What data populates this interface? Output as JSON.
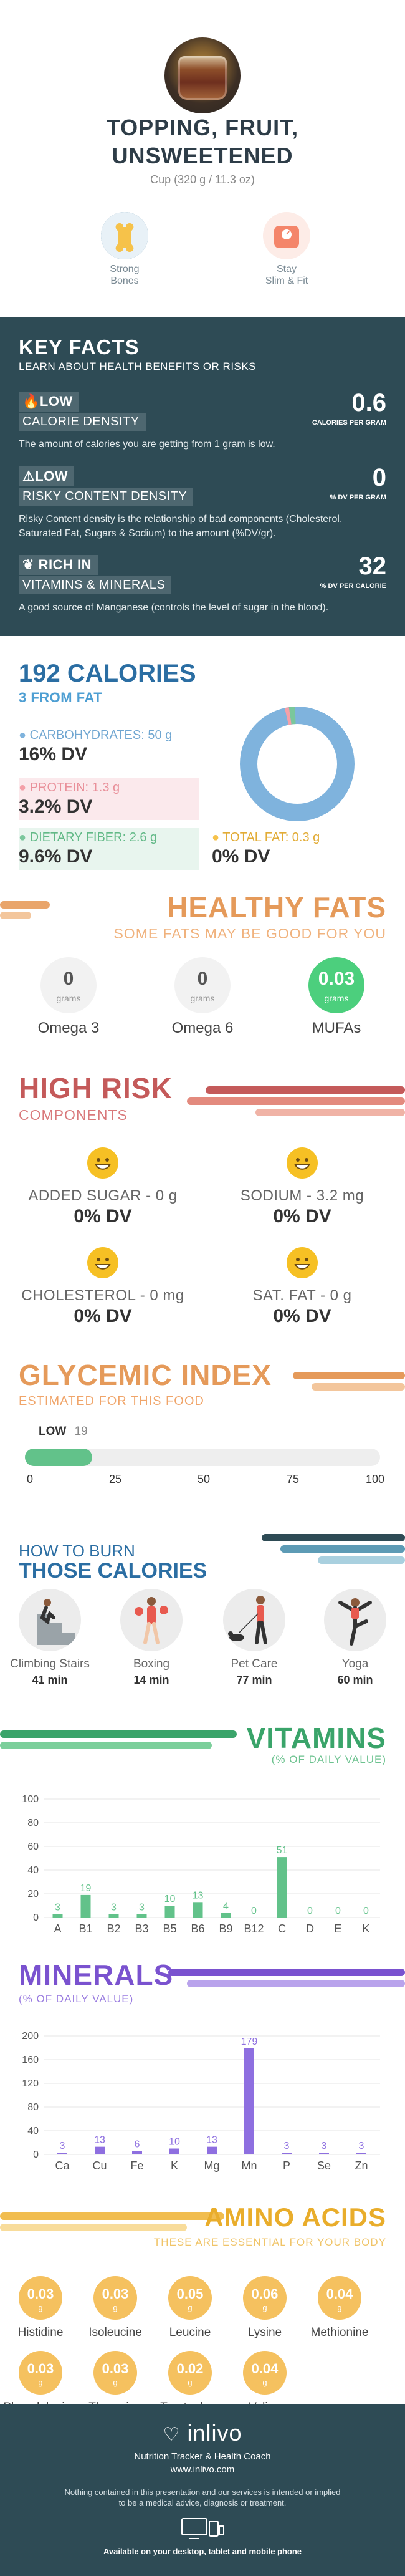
{
  "header": {
    "title_line1": "TOPPING, FRUIT,",
    "title_line2": "UNSWEETENED",
    "serving": "Cup (320 g / 11.3 oz)",
    "badges": [
      {
        "line1": "Strong",
        "line2": "Bones",
        "icon": "bone-icon",
        "color": "#f6c24a"
      },
      {
        "line1": "Stay",
        "line2": "Slim & Fit",
        "icon": "scale-icon",
        "color": "#f4856a"
      }
    ]
  },
  "key_facts": {
    "title": "KEY FACTS",
    "subtitle": "LEARN ABOUT HEALTH BENEFITS OR RISKS",
    "rows": [
      {
        "icon": "flame-icon",
        "level": "LOW",
        "name": "CALORIE DENSITY",
        "value": "0.6",
        "unit": "CALORIES PER GRAM",
        "desc": "The amount of calories you are getting from 1 gram is low."
      },
      {
        "icon": "warning-icon",
        "level": "LOW",
        "name": "RISKY CONTENT DENSITY",
        "value": "0",
        "unit": "% DV PER GRAM",
        "desc": "Risky Content density is the relationship of bad components (Cholesterol, Saturated Fat, Sugars & Sodium) to the amount (%DV/gr)."
      },
      {
        "icon": "leaf-icon",
        "level": "RICH  IN",
        "name": "VITAMINS & MINERALS",
        "value": "32",
        "unit": "% DV PER CALORIE",
        "desc": "A good source of Manganese (controls the level of sugar in the blood)."
      }
    ]
  },
  "calories": {
    "title": "192 CALORIES",
    "subtitle": "3 FROM FAT",
    "nutrients": [
      {
        "label": "CARBOHYDRATES: 50 g",
        "dv": "16% DV",
        "color": "#7fb3dd"
      },
      {
        "label": "PROTEIN: 1.3 g",
        "dv": "3.2% DV",
        "color": "#f4a0a8"
      },
      {
        "label": "DIETARY FIBER: 2.6 g",
        "dv": "9.6% DV",
        "color": "#7ac79c"
      },
      {
        "label": "TOTAL FAT: 0.3 g",
        "dv": "0% DV",
        "color": "#f6c24a"
      }
    ],
    "donut": {
      "carbs": 96.5,
      "protein": 1.2,
      "fiber": 1.7,
      "fat": 0.6
    }
  },
  "healthy_fats": {
    "title": "HEALTHY FATS",
    "subtitle": "SOME FATS MAY BE GOOD FOR YOU",
    "items": [
      {
        "value": "0",
        "unit": "grams",
        "label": "Omega 3"
      },
      {
        "value": "0",
        "unit": "grams",
        "label": "Omega 6"
      },
      {
        "value": "0.03",
        "unit": "grams",
        "label": "MUFAs"
      }
    ]
  },
  "high_risk": {
    "title": "HIGH RISK",
    "subtitle": "COMPONENTS",
    "items": [
      {
        "label": "ADDED SUGAR - 0 g",
        "dv": "0% DV"
      },
      {
        "label": "SODIUM - 3.2 mg",
        "dv": "0% DV"
      },
      {
        "label": "CHOLESTEROL - 0 mg",
        "dv": "0% DV"
      },
      {
        "label": "SAT. FAT - 0 g",
        "dv": "0% DV"
      }
    ]
  },
  "glycemic": {
    "title": "GLYCEMIC INDEX",
    "subtitle": "ESTIMATED FOR THIS FOOD",
    "level": "LOW",
    "value": "19",
    "ticks": [
      "0",
      "25",
      "50",
      "75",
      "100"
    ]
  },
  "burn": {
    "title_small": "HOW TO BURN",
    "title_big": "THOSE CALORIES",
    "items": [
      {
        "name": "Climbing Stairs",
        "minutes": "41 min"
      },
      {
        "name": "Boxing",
        "minutes": "14 min"
      },
      {
        "name": "Pet Care",
        "minutes": "77 min"
      },
      {
        "name": "Yoga",
        "minutes": "60 min"
      }
    ]
  },
  "vitamins": {
    "title": "VITAMINS",
    "subtitle": "(% OF DAILY VALUE)"
  },
  "minerals": {
    "title": "MINERALS",
    "subtitle": "(% OF DAILY VALUE)"
  },
  "chart_data": [
    {
      "type": "bar",
      "title": "VITAMINS",
      "subtitle": "(% OF DAILY VALUE)",
      "categories": [
        "A",
        "B1",
        "B2",
        "B3",
        "B5",
        "B6",
        "B9",
        "B12",
        "C",
        "D",
        "E",
        "K"
      ],
      "values": [
        3,
        19,
        3,
        3,
        10,
        13,
        4,
        0,
        51,
        0,
        0,
        0
      ],
      "labels": [
        "3",
        "19",
        "3",
        "3",
        "10",
        "13",
        "4",
        "0",
        "51",
        "0",
        "0",
        "0"
      ],
      "ylim": [
        0,
        100
      ],
      "yticks": [
        "0",
        "20",
        "40",
        "60",
        "80",
        "100"
      ],
      "color": "#62c28a",
      "grid": true
    },
    {
      "type": "bar",
      "title": "MINERALS",
      "subtitle": "(% OF DAILY VALUE)",
      "categories": [
        "Ca",
        "Cu",
        "Fe",
        "K",
        "Mg",
        "Mn",
        "P",
        "Se",
        "Zn"
      ],
      "values": [
        3,
        13,
        6,
        10,
        13,
        179,
        3,
        3,
        3
      ],
      "labels": [
        "3",
        "13",
        "6",
        "10",
        "13",
        "179",
        "3",
        "3",
        "3"
      ],
      "ylim": [
        0,
        200
      ],
      "yticks": [
        "0",
        "40",
        "80",
        "120",
        "160",
        "200"
      ],
      "color": "#8e6fe0",
      "grid": true
    }
  ],
  "amino": {
    "title": "AMINO ACIDS",
    "subtitle": "THESE ARE ESSENTIAL FOR YOUR BODY",
    "unit": "g",
    "items": [
      {
        "value": "0.03",
        "name": "Histidine"
      },
      {
        "value": "0.03",
        "name": "Isoleucine"
      },
      {
        "value": "0.05",
        "name": "Leucine"
      },
      {
        "value": "0.06",
        "name": "Lysine"
      },
      {
        "value": "0.04",
        "name": "Methionine"
      },
      {
        "value": "0.03",
        "name": "Phenylalanine"
      },
      {
        "value": "0.03",
        "name": "Threonine"
      },
      {
        "value": "0.02",
        "name": "Tryptophan"
      },
      {
        "value": "0.04",
        "name": "Valine"
      }
    ]
  },
  "footer": {
    "brand": "inlivo",
    "tagline": "Nutrition Tracker & Health Coach",
    "url": "www.inlivo.com",
    "disclaimer_1": "Nothing contained in this presentation and our services is intended or implied",
    "disclaimer_2": "to be a medical advice, diagnosis or treatment.",
    "available": "Available on your desktop, tablet and mobile phone"
  }
}
